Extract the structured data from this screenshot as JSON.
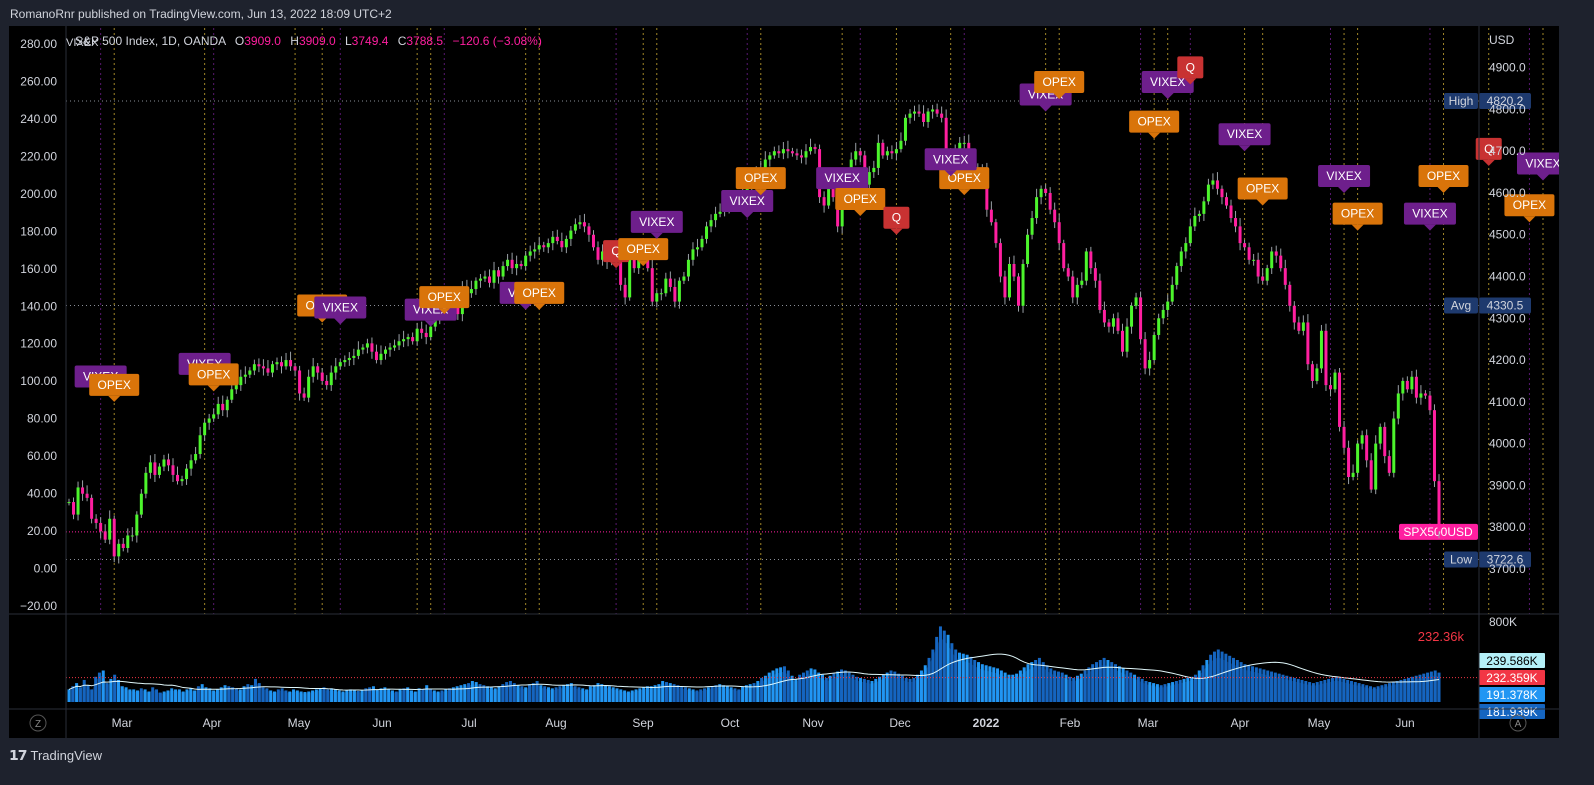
{
  "header": {
    "published": "RomanoRnr published on TradingView.com, Jun 13, 2022 18:09 UTC+2"
  },
  "footer": {
    "brand": "TradingView",
    "logo_icon": "tradingview-logo-icon"
  },
  "legend": {
    "symbol": "S&P 500 Index, 1D, OANDA",
    "o_label": "O",
    "o_value": "3909.0",
    "h_label": "H",
    "h_value": "3909.0",
    "l_label": "L",
    "l_value": "3749.4",
    "c_label": "C",
    "c_value": "3788.5",
    "change": "−120.6 (−3.08%)",
    "indicator_tag": "VIXEX"
  },
  "buttons": {
    "z_label": "Z",
    "a_label": "A"
  },
  "colors": {
    "up": "#4cf52c",
    "down": "#ff1fa0",
    "opex": "#d9740a",
    "vixex": "#6e1f8c",
    "q": "#c83232",
    "ref_line": "#c8a832",
    "last_price": "#ff1fa0",
    "badge_blue": "#1e3a6e",
    "vol_blue": "#2196f3",
    "vol_cyan": "#5ee8f0"
  },
  "chart_data": {
    "type": "candlestick",
    "symbol": "SPX500USD",
    "currency": "USD",
    "y_right_label": "USD",
    "y_right_ticks": [
      "4900.0",
      "4800.0",
      "4700.0",
      "4600.0",
      "4500.0",
      "4400.0",
      "4300.0",
      "4200.0",
      "4100.0",
      "4000.0",
      "3900.0",
      "3800.0",
      "3700.0"
    ],
    "y_right_range": [
      3592,
      4995
    ],
    "y_left_ticks": [
      "280.00",
      "260.00",
      "240.00",
      "220.00",
      "200.00",
      "180.00",
      "160.00",
      "140.00",
      "120.00",
      "100.00",
      "80.00",
      "60.00",
      "40.00",
      "20.00",
      "0.00",
      "−20.00"
    ],
    "x_ticks": [
      "Mar",
      "Apr",
      "May",
      "Jun",
      "Jul",
      "Aug",
      "Sep",
      "Oct",
      "Nov",
      "Dec",
      "2022",
      "Feb",
      "Mar",
      "Apr",
      "May",
      "Jun"
    ],
    "closes": [
      3860,
      3830,
      3895,
      3880,
      3870,
      3820,
      3810,
      3790,
      3770,
      3820,
      3730,
      3760,
      3750,
      3780,
      3780,
      3830,
      3880,
      3930,
      3955,
      3925,
      3945,
      3962,
      3948,
      3925,
      3910,
      3915,
      3940,
      3960,
      3975,
      4020,
      4050,
      4060,
      4070,
      4095,
      4080,
      4105,
      4130,
      4140,
      4160,
      4165,
      4175,
      4190,
      4185,
      4180,
      4170,
      4190,
      4195,
      4185,
      4200,
      4185,
      4175,
      4120,
      4110,
      4160,
      4185,
      4170,
      4150,
      4140,
      4170,
      4185,
      4195,
      4200,
      4205,
      4210,
      4225,
      4230,
      4240,
      4220,
      4200,
      4215,
      4225,
      4230,
      4235,
      4245,
      4250,
      4255,
      4245,
      4275,
      4265,
      4255,
      4280,
      4300,
      4320,
      4335,
      4350,
      4350,
      4310,
      4375,
      4360,
      4370,
      4390,
      4395,
      4400,
      4385,
      4415,
      4400,
      4425,
      4440,
      4420,
      4430,
      4425,
      4450,
      4460,
      4465,
      4475,
      4470,
      4480,
      4495,
      4485,
      4470,
      4490,
      4510,
      4525,
      4530,
      4520,
      4500,
      4470,
      4440,
      4460,
      4435,
      4450,
      4435,
      4380,
      4350,
      4440,
      4420,
      4460,
      4460,
      4420,
      4340,
      4360,
      4360,
      4395,
      4375,
      4340,
      4390,
      4400,
      4440,
      4465,
      4470,
      4490,
      4520,
      4535,
      4550,
      4555,
      4565,
      4575,
      4580,
      4590,
      4600,
      4620,
      4640,
      4650,
      4660,
      4680,
      4690,
      4700,
      4695,
      4705,
      4700,
      4695,
      4690,
      4685,
      4700,
      4710,
      4705,
      4590,
      4570,
      4625,
      4590,
      4520,
      4590,
      4640,
      4680,
      4700,
      4690,
      4620,
      4650,
      4660,
      4720,
      4690,
      4700,
      4695,
      4705,
      4725,
      4780,
      4790,
      4795,
      4790,
      4770,
      4795,
      4800,
      4790,
      4780,
      4670,
      4680,
      4705,
      4720,
      4720,
      4650,
      4660,
      4640,
      4655,
      4560,
      4530,
      4480,
      4400,
      4350,
      4430,
      4400,
      4330,
      4430,
      4500,
      4540,
      4590,
      4610,
      4600,
      4560,
      4530,
      4480,
      4420,
      4400,
      4350,
      4380,
      4390,
      4460,
      4420,
      4390,
      4320,
      4290,
      4280,
      4300,
      4270,
      4220,
      4280,
      4330,
      4350,
      4250,
      4180,
      4200,
      4260,
      4300,
      4320,
      4340,
      4380,
      4425,
      4460,
      4480,
      4520,
      4545,
      4550,
      4580,
      4620,
      4630,
      4610,
      4590,
      4570,
      4540,
      4520,
      4480,
      4470,
      4440,
      4440,
      4400,
      4390,
      4420,
      4460,
      4450,
      4420,
      4380,
      4330,
      4290,
      4270,
      4290,
      4190,
      4150,
      4180,
      4270,
      4140,
      4130,
      4170,
      4040,
      3990,
      3920,
      3930,
      4000,
      4020,
      3960,
      3890,
      4000,
      4040,
      3970,
      3930,
      4060,
      4120,
      4150,
      4130,
      4160,
      4110,
      4120,
      4115,
      4080,
      3910,
      3790
    ],
    "last_price_label": "SPX500USD",
    "high": {
      "label": "High",
      "value": "4820.2",
      "price": 4820.2
    },
    "avg": {
      "label": "Avg",
      "value": "4330.5",
      "price": 4330.5
    },
    "low": {
      "label": "Low",
      "value": "3722.6",
      "price": 3722.6
    },
    "last_price": 3788.5,
    "markers": [
      {
        "type": "VIXEX",
        "i": 7,
        "price": 4120
      },
      {
        "type": "OPEX",
        "i": 10,
        "price": 4100
      },
      {
        "type": "VIXEX",
        "i": 30,
        "price": 4150
      },
      {
        "type": "OPEX",
        "i": 32,
        "price": 4125
      },
      {
        "type": "OPEX",
        "i": 56,
        "price": 4290
      },
      {
        "type": "VIXEX",
        "i": 60,
        "price": 4285
      },
      {
        "type": "VIXEX",
        "i": 80,
        "price": 4280
      },
      {
        "type": "OPEX",
        "i": 83,
        "price": 4310
      },
      {
        "type": "VIXEX",
        "i": 101,
        "price": 4320
      },
      {
        "type": "OPEX",
        "i": 104,
        "price": 4320
      },
      {
        "type": "Q",
        "i": 121,
        "price": 4420
      },
      {
        "type": "OPEX",
        "i": 127,
        "price": 4425
      },
      {
        "type": "VIXEX",
        "i": 130,
        "price": 4490
      },
      {
        "type": "VIXEX",
        "i": 150,
        "price": 4540
      },
      {
        "type": "OPEX",
        "i": 153,
        "price": 4595
      },
      {
        "type": "VIXEX",
        "i": 171,
        "price": 4595
      },
      {
        "type": "OPEX",
        "i": 175,
        "price": 4545
      },
      {
        "type": "Q",
        "i": 183,
        "price": 4500
      },
      {
        "type": "OPEX",
        "i": 198,
        "price": 4595
      },
      {
        "type": "VIXEX",
        "i": 195,
        "price": 4640
      },
      {
        "type": "VIXEX",
        "i": 216,
        "price": 4795
      },
      {
        "type": "OPEX",
        "i": 219,
        "price": 4825
      },
      {
        "type": "OPEX",
        "i": 240,
        "price": 4730
      },
      {
        "type": "VIXEX",
        "i": 243,
        "price": 4825
      },
      {
        "type": "Q",
        "i": 248,
        "price": 4860
      },
      {
        "type": "VIXEX",
        "i": 260,
        "price": 4700
      },
      {
        "type": "OPEX",
        "i": 264,
        "price": 4570
      },
      {
        "type": "VIXEX",
        "i": 282,
        "price": 4600
      },
      {
        "type": "OPEX",
        "i": 285,
        "price": 4510
      },
      {
        "type": "VIXEX",
        "i": 301,
        "price": 4510
      },
      {
        "type": "OPEX",
        "i": 304,
        "price": 4600
      },
      {
        "type": "Q",
        "i": 314,
        "price": 4665
      },
      {
        "type": "OPEX",
        "i": 323,
        "price": 4530
      },
      {
        "type": "VIXEX",
        "i": 326,
        "price": 4630
      },
      {
        "type": "VIXEX",
        "i": 346,
        "price": 4095
      },
      {
        "type": "OPEX",
        "i": 349,
        "price": 4115
      }
    ],
    "ref_lines_i": [
      7,
      10,
      30,
      32,
      50,
      56,
      60,
      77,
      80,
      83,
      101,
      104,
      121,
      127,
      130,
      150,
      153,
      171,
      175,
      183,
      195,
      198,
      216,
      219,
      237,
      240,
      243,
      248,
      260,
      264,
      279,
      282,
      285,
      301,
      304,
      314,
      323,
      326,
      346,
      349,
      357
    ],
    "volume": {
      "label_value": "232.36k",
      "max_tick": "800K",
      "badges": [
        {
          "text": "239.586K",
          "bg": "#b4f0f8",
          "fg": "#000"
        },
        {
          "text": "232.359K",
          "bg": "#f23645",
          "fg": "#fff"
        },
        {
          "text": "191.378K",
          "bg": "#2196f3",
          "fg": "#fff"
        },
        {
          "text": "181.939K",
          "bg": "#1565c0",
          "fg": "#fff"
        }
      ],
      "values": [
        120,
        150,
        180,
        140,
        210,
        160,
        120,
        240,
        280,
        300,
        180,
        220,
        260,
        210,
        150,
        140,
        120,
        120,
        110,
        130,
        120,
        100,
        140,
        120,
        90,
        100,
        110,
        130,
        120,
        120,
        100,
        120,
        130,
        110,
        150,
        170,
        140,
        130,
        110,
        120,
        140,
        160,
        150,
        140,
        130,
        120,
        150,
        170,
        160,
        220,
        180,
        140,
        130,
        110,
        100,
        120,
        130,
        110,
        100,
        120,
        110,
        100,
        95,
        100,
        110,
        120,
        130,
        140,
        120,
        130,
        120,
        110,
        100,
        110,
        120,
        115,
        105,
        110,
        130,
        140,
        150,
        120,
        130,
        140,
        120,
        110,
        100,
        120,
        130,
        140,
        110,
        100,
        130,
        120,
        160,
        120,
        110,
        100,
        110,
        120,
        130,
        140,
        150,
        160,
        170,
        180,
        200,
        190,
        170,
        160,
        150,
        140,
        130,
        150,
        170,
        190,
        200,
        180,
        160,
        150,
        140,
        170,
        180,
        200,
        160,
        150,
        140,
        130,
        140,
        150,
        160,
        170,
        180,
        150,
        140,
        130,
        120,
        150,
        160,
        180,
        170,
        160,
        150,
        140,
        130,
        120,
        110,
        100,
        110,
        120,
        130,
        140,
        150,
        150,
        160,
        170,
        200,
        190,
        180,
        170,
        160,
        150,
        140,
        130,
        120,
        110,
        120,
        130,
        140,
        150,
        160,
        170,
        160,
        150,
        140,
        130,
        120,
        150,
        160,
        170,
        180,
        200,
        230,
        250,
        280,
        300,
        320,
        330,
        340,
        300,
        250,
        220,
        260,
        280,
        300,
        320,
        310,
        280,
        260,
        230,
        250,
        270,
        290,
        310,
        300,
        280,
        260,
        240,
        230,
        220,
        210,
        200,
        220,
        240,
        260,
        280,
        300,
        290,
        270,
        250,
        230,
        220,
        230,
        260,
        300,
        350,
        420,
        500,
        620,
        720,
        680,
        640,
        560,
        500,
        470,
        460,
        450,
        430,
        400,
        380,
        360,
        350,
        340,
        330,
        320,
        300,
        280,
        260,
        260,
        270,
        300,
        330,
        360,
        380,
        400,
        420,
        380,
        350,
        320,
        300,
        290,
        280,
        260,
        240,
        230,
        250,
        270,
        300,
        330,
        360,
        380,
        400,
        420,
        400,
        380,
        360,
        340,
        320,
        300,
        280,
        260,
        240,
        220,
        200,
        190,
        180,
        170,
        160,
        170,
        180,
        190,
        200,
        210,
        220,
        230,
        240,
        260,
        300,
        350,
        400,
        450,
        480,
        500,
        480,
        460,
        440,
        420,
        400,
        380,
        360,
        350,
        340,
        330,
        320,
        310,
        300,
        290,
        280,
        270,
        260,
        250,
        240,
        230,
        220,
        210,
        200,
        190,
        180,
        190,
        200,
        210,
        220,
        230,
        240,
        230,
        220,
        210,
        200,
        190,
        180,
        170,
        160,
        150,
        140,
        150,
        160,
        170,
        180,
        190,
        200,
        210,
        220,
        230,
        240,
        250,
        260,
        270,
        280,
        290,
        300,
        280
      ]
    }
  }
}
